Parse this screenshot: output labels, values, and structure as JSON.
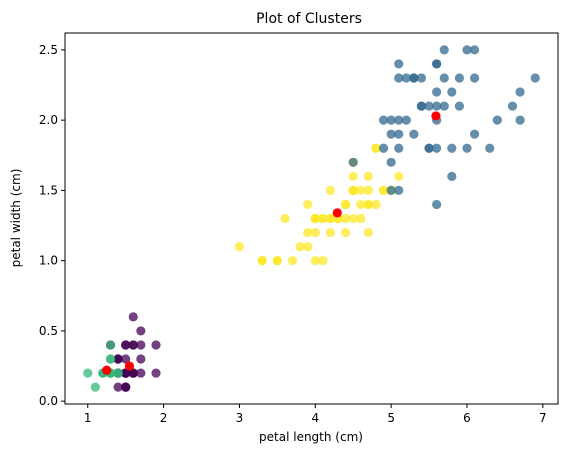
{
  "chart_data": {
    "type": "scatter",
    "title": "Plot of Clusters",
    "xlabel": "petal length (cm)",
    "ylabel": "petal width (cm)",
    "xlim": [
      0.7,
      7.2
    ],
    "ylim": [
      -0.02,
      2.62
    ],
    "xticks": [
      1,
      2,
      3,
      4,
      5,
      6,
      7
    ],
    "yticks": [
      0.0,
      0.5,
      1.0,
      1.5,
      2.0,
      2.5
    ],
    "xtick_labels": [
      "1",
      "2",
      "3",
      "4",
      "5",
      "6",
      "7"
    ],
    "ytick_labels": [
      "0.0",
      "0.5",
      "1.0",
      "1.5",
      "2.0",
      "2.5"
    ],
    "grid": false,
    "legend": "none",
    "series": [
      {
        "color": "#440154",
        "alpha": 0.75,
        "points": [
          [
            1.4,
            0.2
          ],
          [
            1.4,
            0.2
          ],
          [
            1.5,
            0.2
          ],
          [
            1.4,
            0.2
          ],
          [
            1.7,
            0.4
          ],
          [
            1.4,
            0.3
          ],
          [
            1.5,
            0.2
          ],
          [
            1.5,
            0.1
          ],
          [
            1.5,
            0.2
          ],
          [
            1.6,
            0.2
          ],
          [
            1.4,
            0.1
          ],
          [
            1.5,
            0.4
          ],
          [
            1.3,
            0.4
          ],
          [
            1.4,
            0.3
          ],
          [
            1.7,
            0.3
          ],
          [
            1.5,
            0.3
          ],
          [
            1.7,
            0.2
          ],
          [
            1.5,
            0.4
          ],
          [
            1.9,
            0.2
          ],
          [
            1.6,
            0.2
          ],
          [
            1.6,
            0.4
          ],
          [
            1.5,
            0.2
          ],
          [
            1.4,
            0.2
          ],
          [
            1.6,
            0.2
          ],
          [
            1.5,
            0.1
          ],
          [
            1.5,
            0.2
          ],
          [
            1.6,
            0.6
          ],
          [
            1.9,
            0.4
          ],
          [
            1.4,
            0.3
          ],
          [
            1.6,
            0.2
          ],
          [
            1.4,
            0.2
          ],
          [
            1.5,
            0.2
          ],
          [
            1.7,
            0.5
          ],
          [
            1.6,
            0.4
          ],
          [
            1.5,
            0.1
          ]
        ]
      },
      {
        "color": "#35b779",
        "alpha": 0.75,
        "points": [
          [
            1.3,
            0.2
          ],
          [
            1.4,
            0.2
          ],
          [
            1.1,
            0.1
          ],
          [
            1.2,
            0.2
          ],
          [
            1.3,
            0.4
          ],
          [
            1.0,
            0.2
          ],
          [
            1.3,
            0.2
          ],
          [
            1.2,
            0.2
          ],
          [
            1.3,
            0.3
          ],
          [
            1.3,
            0.2
          ],
          [
            1.3,
            0.3
          ],
          [
            1.4,
            0.2
          ],
          [
            1.3,
            0.2
          ],
          [
            1.3,
            0.2
          ],
          [
            1.2,
            0.2
          ]
        ]
      },
      {
        "color": "#fde725",
        "alpha": 0.75,
        "points": [
          [
            4.7,
            1.4
          ],
          [
            4.5,
            1.5
          ],
          [
            4.0,
            1.3
          ],
          [
            4.6,
            1.5
          ],
          [
            4.5,
            1.3
          ],
          [
            4.7,
            1.6
          ],
          [
            3.3,
            1.0
          ],
          [
            4.6,
            1.3
          ],
          [
            3.9,
            1.4
          ],
          [
            3.5,
            1.0
          ],
          [
            4.2,
            1.5
          ],
          [
            4.0,
            1.0
          ],
          [
            4.7,
            1.4
          ],
          [
            3.6,
            1.3
          ],
          [
            4.4,
            1.4
          ],
          [
            4.5,
            1.5
          ],
          [
            4.1,
            1.0
          ],
          [
            4.5,
            1.5
          ],
          [
            3.9,
            1.1
          ],
          [
            4.8,
            1.8
          ],
          [
            4.0,
            1.3
          ],
          [
            4.9,
            1.5
          ],
          [
            4.7,
            1.2
          ],
          [
            4.3,
            1.3
          ],
          [
            4.4,
            1.4
          ],
          [
            4.8,
            1.4
          ],
          [
            4.5,
            1.7
          ],
          [
            3.5,
            1.0
          ],
          [
            3.8,
            1.1
          ],
          [
            3.7,
            1.0
          ],
          [
            3.9,
            1.2
          ],
          [
            5.1,
            1.6
          ],
          [
            4.5,
            1.5
          ],
          [
            4.5,
            1.6
          ],
          [
            4.7,
            1.5
          ],
          [
            4.4,
            1.3
          ],
          [
            4.1,
            1.3
          ],
          [
            4.0,
            1.3
          ],
          [
            4.4,
            1.2
          ],
          [
            4.6,
            1.4
          ],
          [
            4.0,
            1.2
          ],
          [
            3.3,
            1.0
          ],
          [
            4.2,
            1.3
          ],
          [
            4.2,
            1.2
          ],
          [
            4.2,
            1.3
          ],
          [
            4.3,
            1.3
          ],
          [
            3.0,
            1.1
          ],
          [
            4.1,
            1.3
          ],
          [
            4.9,
            1.5
          ],
          [
            4.8,
            1.8
          ],
          [
            5.0,
            1.5
          ]
        ]
      },
      {
        "color": "#31688e",
        "alpha": 0.75,
        "points": [
          [
            6.0,
            2.5
          ],
          [
            5.1,
            1.9
          ],
          [
            5.9,
            2.1
          ],
          [
            5.6,
            1.8
          ],
          [
            5.8,
            2.2
          ],
          [
            6.6,
            2.1
          ],
          [
            4.5,
            1.7
          ],
          [
            6.3,
            1.8
          ],
          [
            5.8,
            1.8
          ],
          [
            6.1,
            2.5
          ],
          [
            5.1,
            2.0
          ],
          [
            5.3,
            1.9
          ],
          [
            5.5,
            2.1
          ],
          [
            5.0,
            2.0
          ],
          [
            5.1,
            2.4
          ],
          [
            5.3,
            2.3
          ],
          [
            5.5,
            1.8
          ],
          [
            6.7,
            2.2
          ],
          [
            6.9,
            2.3
          ],
          [
            5.0,
            1.5
          ],
          [
            5.7,
            2.3
          ],
          [
            4.9,
            2.0
          ],
          [
            6.7,
            2.0
          ],
          [
            5.7,
            2.1
          ],
          [
            6.0,
            1.8
          ],
          [
            5.6,
            2.1
          ],
          [
            5.8,
            1.6
          ],
          [
            6.1,
            1.9
          ],
          [
            6.4,
            2.0
          ],
          [
            5.6,
            2.2
          ],
          [
            5.1,
            1.5
          ],
          [
            5.6,
            1.4
          ],
          [
            6.1,
            2.3
          ],
          [
            5.6,
            2.4
          ],
          [
            5.5,
            1.8
          ],
          [
            5.4,
            2.1
          ],
          [
            5.6,
            2.4
          ],
          [
            5.1,
            2.3
          ],
          [
            5.9,
            2.3
          ],
          [
            5.7,
            2.5
          ],
          [
            5.2,
            2.3
          ],
          [
            5.0,
            1.9
          ],
          [
            5.2,
            2.0
          ],
          [
            5.4,
            2.3
          ],
          [
            5.1,
            1.8
          ],
          [
            5.0,
            1.7
          ],
          [
            4.9,
            1.8
          ],
          [
            5.3,
            2.3
          ],
          [
            5.4,
            2.1
          ],
          [
            5.6,
            2.0
          ]
        ]
      }
    ],
    "centroids": {
      "color": "#ff0000",
      "points": [
        [
          1.55,
          0.25
        ],
        [
          1.25,
          0.22
        ],
        [
          4.29,
          1.34
        ],
        [
          5.59,
          2.03
        ]
      ]
    }
  }
}
